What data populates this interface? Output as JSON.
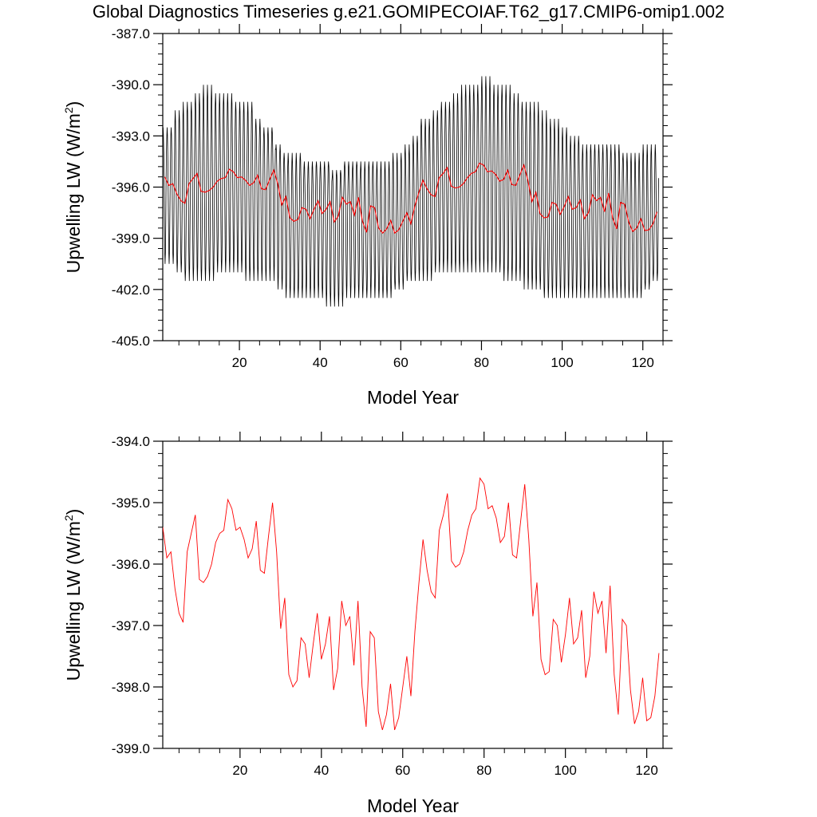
{
  "title": "Global Diagnostics Timeseries g.e21.GOMIPECOIAF.T62_g17.CMIP6-omip1.002",
  "colors": {
    "monthly": "#000000",
    "annual": "#ff0000",
    "frame": "#000000"
  },
  "chart_data": [
    {
      "type": "line",
      "xlabel": "Model Year",
      "ylabel": "Upwelling LW (W/m²)",
      "ylabel_main": "Upwelling LW (W/m",
      "ylabel_sup": "2",
      "ylabel_close": ")",
      "xlim": [
        1,
        125
      ],
      "ylim": [
        -405.0,
        -387.0
      ],
      "x_ticks": [
        20,
        40,
        60,
        80,
        100,
        120
      ],
      "x_tick_labels": [
        "20",
        "40",
        "60",
        "80",
        "100",
        "120"
      ],
      "y_ticks": [
        -387.0,
        -390.0,
        -393.0,
        -396.0,
        -399.0,
        -402.0,
        -405.0
      ],
      "y_tick_labels": [
        "-387.0",
        "-390.0",
        "-393.0",
        "-396.0",
        "-399.0",
        "-402.0",
        "-405.0"
      ],
      "grid": false,
      "series": [
        {
          "kind": "monthly",
          "color": "#000000",
          "x_start": 1,
          "step": 0.0833333,
          "seasonal_high": [
            -392.5,
            -391.5,
            -391.0,
            -390.5,
            -390.0,
            -390.5,
            -390.5,
            -391.0,
            -391.0,
            -392.0,
            -392.5,
            -393.5,
            -394.0,
            -394.0,
            -394.5,
            -394.5,
            -394.5,
            -395.0,
            -394.5,
            -394.5,
            -394.5,
            -394.5,
            -394.5,
            -394.0,
            -393.5,
            -393.0,
            -392.0,
            -391.5,
            -391.0,
            -390.5,
            -390.0,
            -390.0,
            -389.5,
            -390.0,
            -390.0,
            -390.5,
            -391.0,
            -391.0,
            -391.5,
            -392.0,
            -392.5,
            -393.0,
            -393.5,
            -393.5,
            -393.5,
            -393.5,
            -394.0,
            -394.0,
            -393.5,
            -393.5
          ],
          "seasonal_low": [
            -400.5,
            -401.0,
            -401.5,
            -401.5,
            -401.5,
            -401.0,
            -401.0,
            -401.0,
            -401.5,
            -401.5,
            -401.5,
            -402.0,
            -402.5,
            -402.5,
            -402.5,
            -402.5,
            -403.0,
            -403.0,
            -402.5,
            -402.5,
            -402.5,
            -402.5,
            -402.5,
            -402.0,
            -401.5,
            -401.5,
            -401.5,
            -401.0,
            -401.0,
            -401.0,
            -401.0,
            -401.0,
            -401.0,
            -401.0,
            -401.5,
            -401.5,
            -402.0,
            -402.0,
            -402.5,
            -402.5,
            -402.5,
            -402.5,
            -402.5,
            -402.5,
            -402.5,
            -402.5,
            -402.5,
            -402.5,
            -402.0,
            -401.5
          ]
        },
        {
          "kind": "annual",
          "color": "#ff0000",
          "x_start": 1,
          "values": "annual_means"
        }
      ]
    },
    {
      "type": "line",
      "xlabel": "Model Year",
      "ylabel": "Upwelling LW (W/m²)",
      "ylabel_main": "Upwelling LW (W/m",
      "ylabel_sup": "2",
      "ylabel_close": ")",
      "xlim": [
        1,
        124
      ],
      "ylim": [
        -399.0,
        -394.0
      ],
      "x_ticks": [
        20,
        40,
        60,
        80,
        100,
        120
      ],
      "x_tick_labels": [
        "20",
        "40",
        "60",
        "80",
        "100",
        "120"
      ],
      "y_ticks": [
        -394.0,
        -395.0,
        -396.0,
        -397.0,
        -398.0,
        -399.0
      ],
      "y_tick_labels": [
        "-394.0",
        "-395.0",
        "-396.0",
        "-397.0",
        "-398.0",
        "-399.0"
      ],
      "grid": false,
      "series": [
        {
          "kind": "annual",
          "color": "#ff0000",
          "x_start": 1,
          "values": [
            -395.4,
            -395.9,
            -395.8,
            -396.4,
            -396.8,
            -396.95,
            -395.8,
            -395.5,
            -395.2,
            -396.25,
            -396.3,
            -396.2,
            -396.0,
            -395.65,
            -395.5,
            -395.45,
            -394.95,
            -395.1,
            -395.45,
            -395.4,
            -395.6,
            -395.9,
            -395.75,
            -395.3,
            -396.1,
            -396.15,
            -395.55,
            -395.0,
            -395.8,
            -397.05,
            -396.55,
            -397.8,
            -398.0,
            -397.9,
            -397.2,
            -397.3,
            -397.85,
            -397.3,
            -396.8,
            -397.55,
            -397.3,
            -396.85,
            -398.05,
            -397.7,
            -396.6,
            -397.0,
            -396.85,
            -397.65,
            -396.6,
            -398.0,
            -398.65,
            -397.1,
            -397.2,
            -398.4,
            -398.7,
            -398.45,
            -397.95,
            -398.7,
            -398.5,
            -398.0,
            -397.5,
            -398.15,
            -397.1,
            -396.3,
            -395.6,
            -396.1,
            -396.45,
            -396.55,
            -395.45,
            -395.2,
            -394.85,
            -395.95,
            -396.05,
            -396.0,
            -395.8,
            -395.45,
            -395.2,
            -395.1,
            -394.6,
            -394.7,
            -395.1,
            -395.05,
            -395.25,
            -395.65,
            -395.55,
            -395.0,
            -395.85,
            -395.9,
            -395.3,
            -394.7,
            -395.6,
            -396.85,
            -396.3,
            -397.55,
            -397.8,
            -397.75,
            -396.9,
            -397.0,
            -397.6,
            -397.15,
            -396.55,
            -397.3,
            -397.2,
            -396.75,
            -397.85,
            -397.5,
            -396.45,
            -396.8,
            -396.6,
            -397.45,
            -396.35,
            -397.8,
            -398.45,
            -396.9,
            -397.0,
            -398.05,
            -398.6,
            -398.4,
            -397.85,
            -398.55,
            -398.5,
            -398.15,
            -397.45
          ]
        }
      ]
    }
  ]
}
